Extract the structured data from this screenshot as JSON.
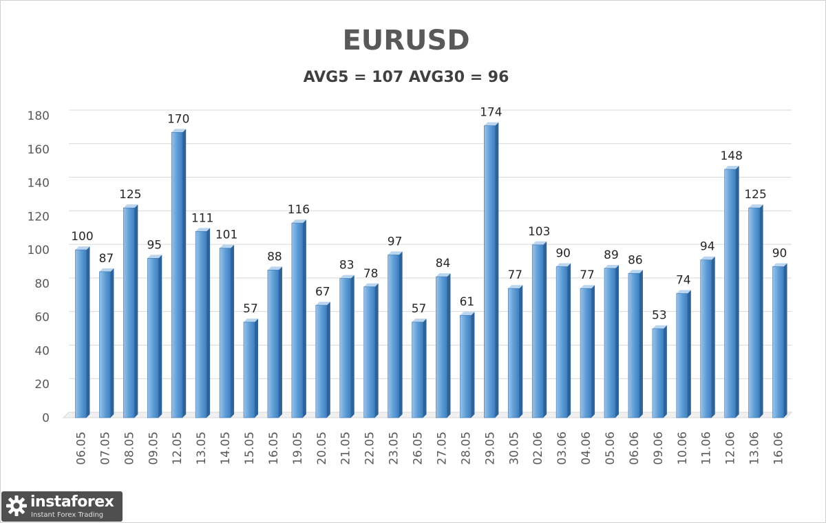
{
  "chart_data": {
    "type": "bar",
    "title": "EURUSD",
    "subtitle": "AVG5 = 107 AVG30 = 96",
    "categories": [
      "06.05",
      "07.05",
      "08.05",
      "09.05",
      "12.05",
      "13.05",
      "14.05",
      "15.05",
      "16.05",
      "19.05",
      "20.05",
      "21.05",
      "22.05",
      "23.05",
      "26.05",
      "27.05",
      "28.05",
      "29.05",
      "30.05",
      "02.06",
      "03.06",
      "04.06",
      "05.06",
      "06.06",
      "09.06",
      "10.06",
      "11.06",
      "12.06",
      "13.06",
      "16.06"
    ],
    "values": [
      100,
      87,
      125,
      95,
      170,
      111,
      101,
      57,
      88,
      116,
      67,
      83,
      78,
      97,
      57,
      84,
      61,
      174,
      77,
      103,
      90,
      77,
      89,
      86,
      53,
      74,
      94,
      148,
      125,
      90
    ],
    "ylim": [
      0,
      180
    ],
    "yticks": [
      0,
      20,
      40,
      60,
      80,
      100,
      120,
      140,
      160,
      180
    ],
    "grid": true,
    "colors": {
      "bar_front": "#5b9bd5",
      "bar_highlight": "#9cc3e8",
      "bar_side": "#2e6399",
      "bar_top": "#b9d5ef",
      "grid": "#d9d9d9",
      "tick_text": "#595959",
      "label_text": "#262626"
    }
  },
  "logo": {
    "name": "instaforex",
    "tagline": "Instant Forex Trading"
  }
}
